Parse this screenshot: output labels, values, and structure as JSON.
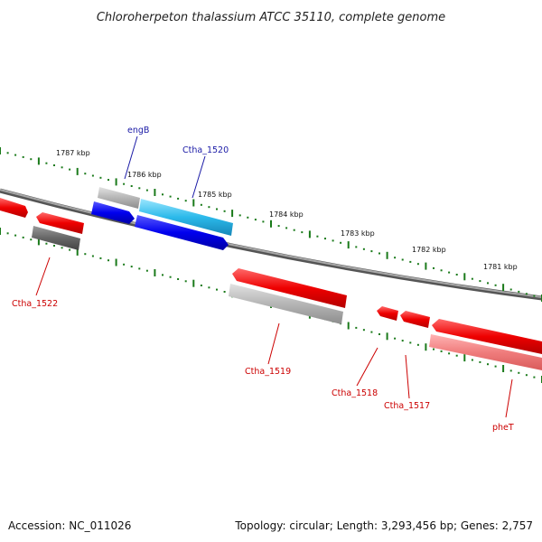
{
  "title": "Chloroherpeton thalassium ATCC 35110, complete genome",
  "ruler": {
    "labels": [
      "1787 kbp",
      "1786 kbp",
      "1785 kbp",
      "1784 kbp",
      "1783 kbp",
      "1782 kbp",
      "1781 kbp"
    ]
  },
  "genes": {
    "engB": "engB",
    "ctha1520": "Ctha_1520",
    "ctha1522": "Ctha_1522",
    "ctha1519": "Ctha_1519",
    "ctha1518": "Ctha_1518",
    "ctha1517": "Ctha_1517",
    "pheT": "pheT"
  },
  "colors": {
    "forward_gene": "#dd0000",
    "reverse_gene": "#0000dd",
    "rna_gene": "#22aadd",
    "pseudo_gene": "#999999",
    "tick": "#1a7a1a"
  },
  "footer": {
    "accession": "Accession: NC_011026",
    "summary": "Topology: circular; Length: 3,293,456 bp; Genes: 2,757"
  }
}
